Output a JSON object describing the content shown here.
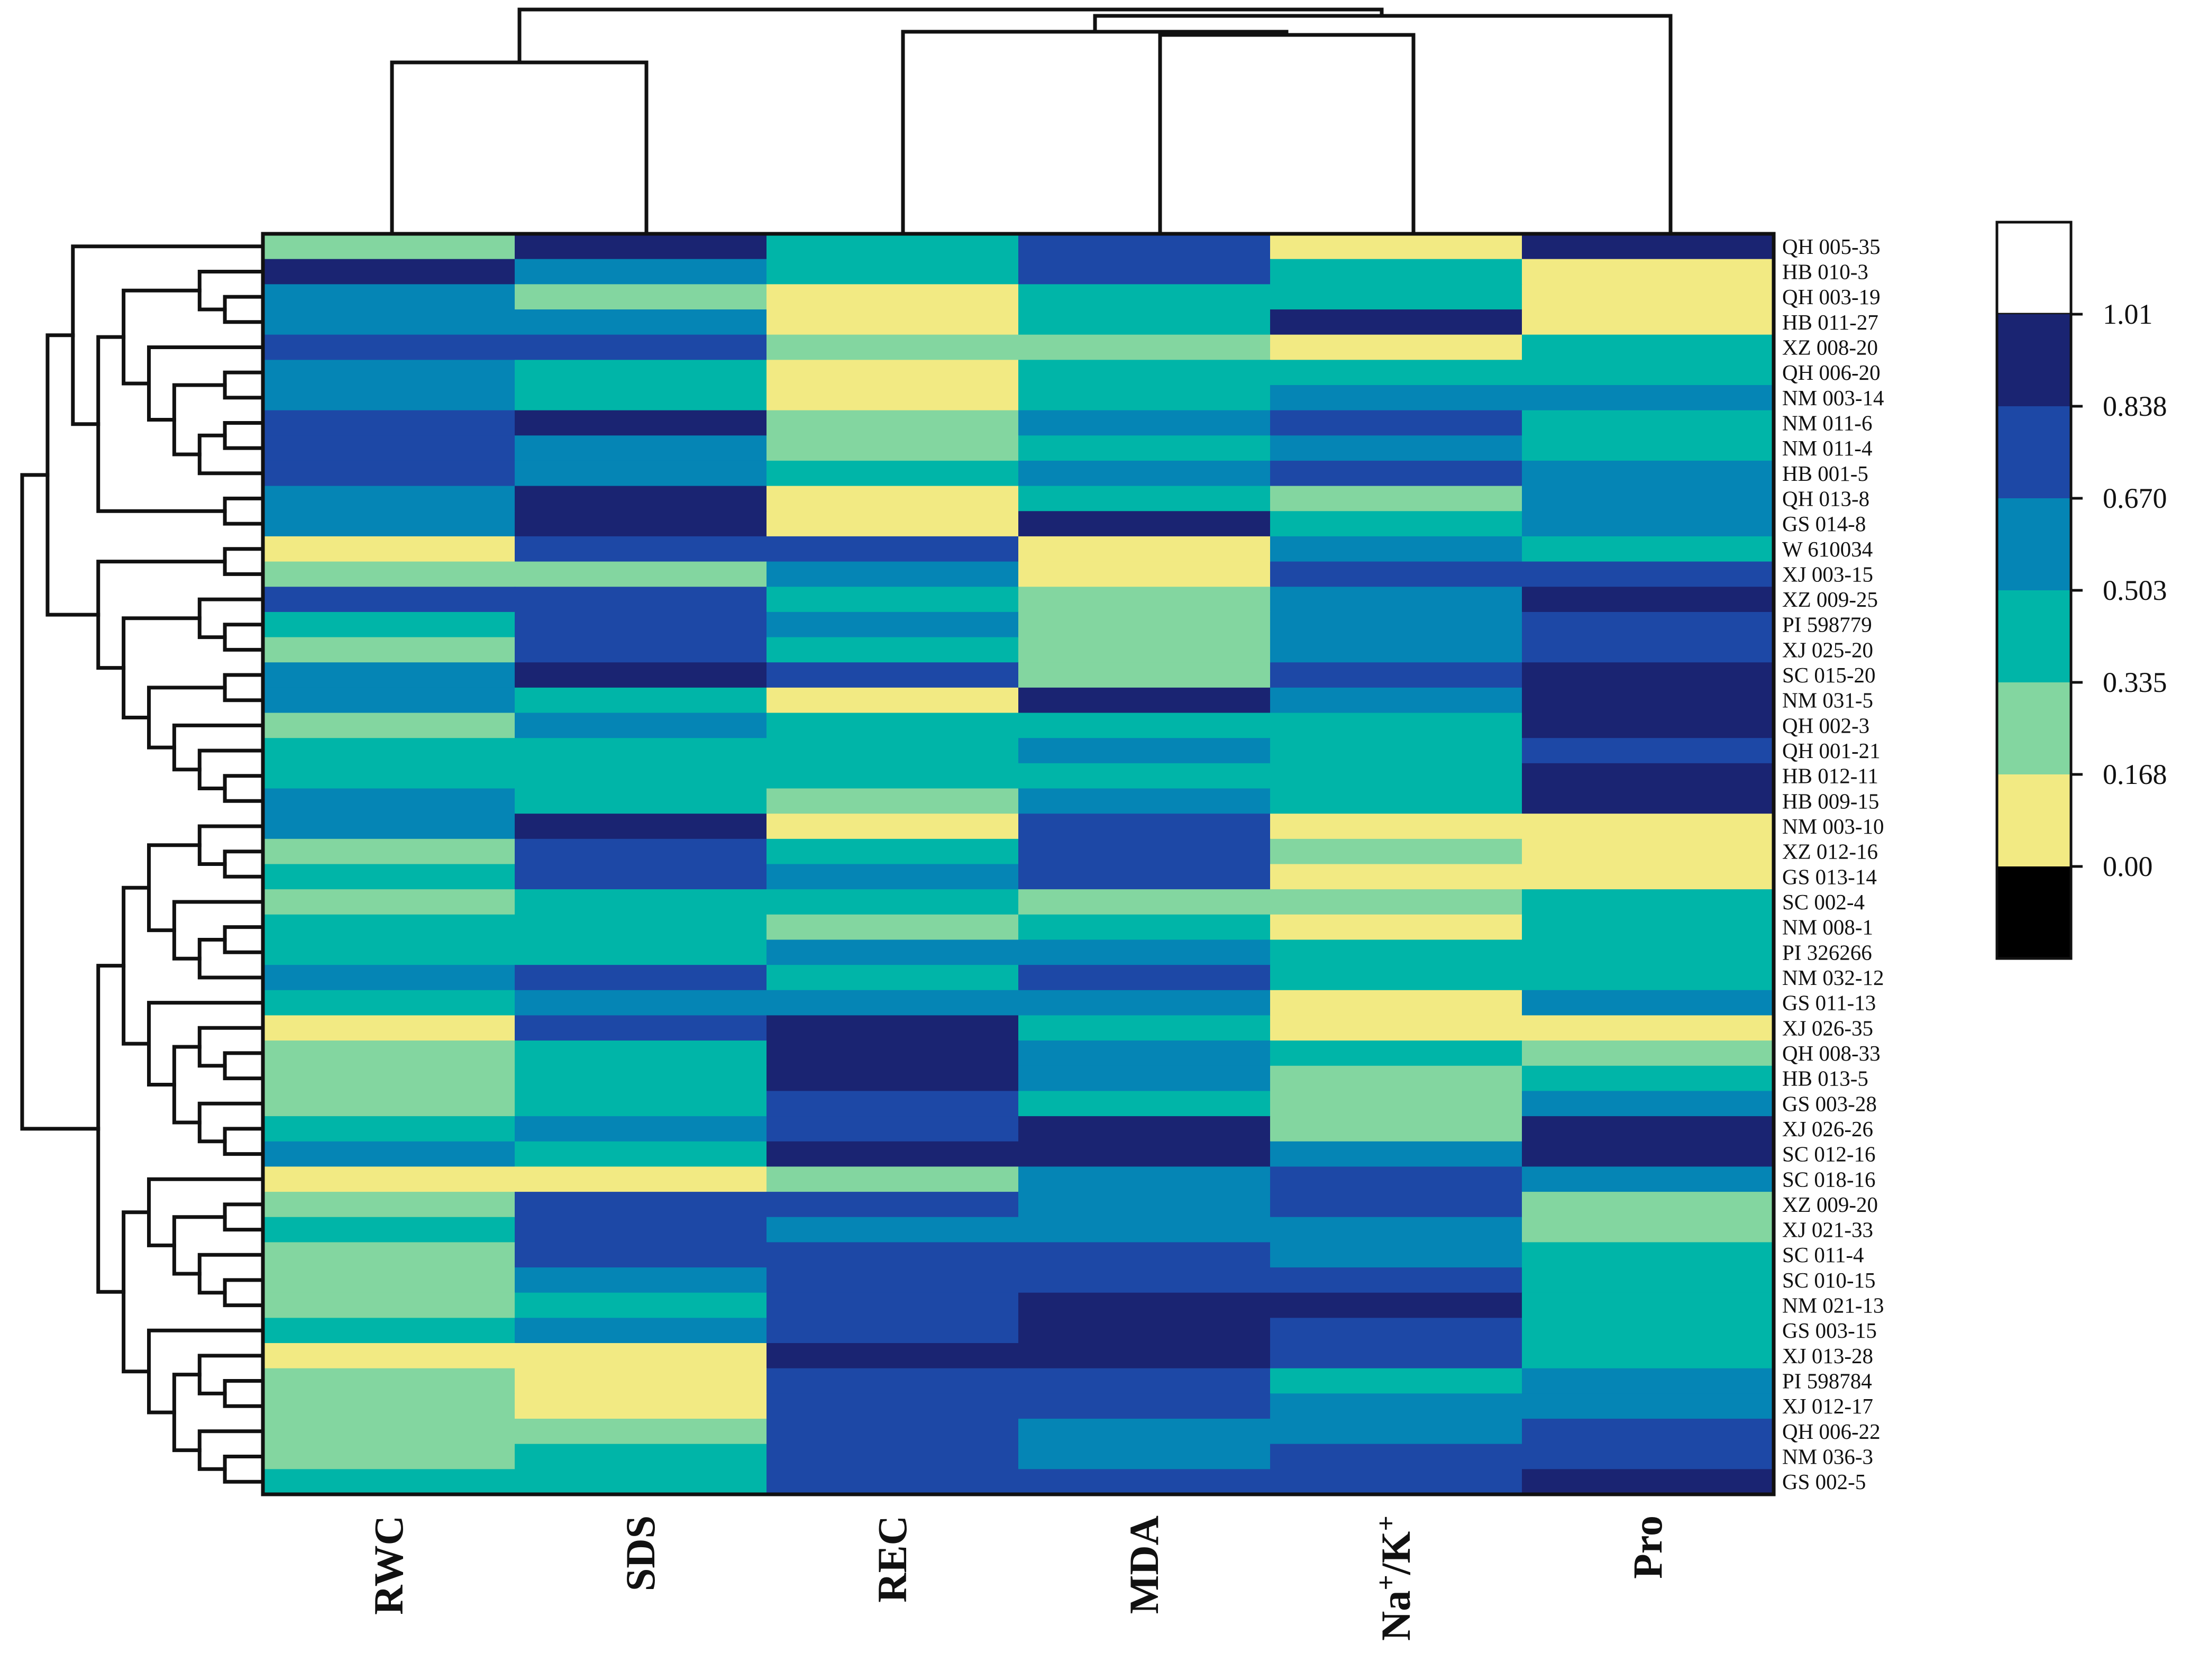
{
  "chart_data": {
    "type": "heatmap",
    "title": "",
    "columns": [
      "RWC",
      "SDS",
      "REC",
      "MDA",
      "Na+/K+",
      "Pro"
    ],
    "rows": [
      "QH 005-35",
      "HB 010-3",
      "QH 003-19",
      "HB 011-27",
      "XZ 008-20",
      "QH 006-20",
      "NM 003-14",
      "NM 011-6",
      "NM 011-4",
      "HB 001-5",
      "QH 013-8",
      "GS 014-8",
      "W 610034",
      "XJ 003-15",
      "XZ 009-25",
      "PI 598779",
      "XJ 025-20",
      "SC 015-20",
      "NM 031-5",
      "QH 002-3",
      "QH 001-21",
      "HB 012-11",
      "HB 009-15",
      "NM 003-10",
      "XZ 012-16",
      "GS 013-14",
      "SC 002-4",
      "NM 008-1",
      "PI 326266",
      "NM 032-12",
      "GS 011-13",
      "XJ 026-35",
      "QH 008-33",
      "HB 013-5",
      "GS 003-28",
      "XJ 026-26",
      "SC 012-16",
      "SC 018-16",
      "XZ 009-20",
      "XJ 021-33",
      "SC 011-4",
      "SC 010-15",
      "NM 021-13",
      "GS 003-15",
      "XJ 013-28",
      "PI 598784",
      "XJ 012-17",
      "QH 006-22",
      "NM 036-3",
      "GS 002-5"
    ],
    "values": [
      [
        0.25,
        0.92,
        0.42,
        0.75,
        0.08,
        0.92
      ],
      [
        0.92,
        0.58,
        0.42,
        0.75,
        0.42,
        0.08
      ],
      [
        0.58,
        0.25,
        0.08,
        0.42,
        0.42,
        0.08
      ],
      [
        0.58,
        0.58,
        0.08,
        0.42,
        0.92,
        0.08
      ],
      [
        0.75,
        0.75,
        0.25,
        0.25,
        0.08,
        0.42
      ],
      [
        0.58,
        0.42,
        0.08,
        0.42,
        0.42,
        0.42
      ],
      [
        0.58,
        0.42,
        0.08,
        0.42,
        0.58,
        0.58
      ],
      [
        0.75,
        0.92,
        0.25,
        0.58,
        0.75,
        0.42
      ],
      [
        0.75,
        0.58,
        0.25,
        0.42,
        0.58,
        0.42
      ],
      [
        0.75,
        0.58,
        0.42,
        0.58,
        0.75,
        0.58
      ],
      [
        0.58,
        0.92,
        0.08,
        0.42,
        0.25,
        0.58
      ],
      [
        0.58,
        0.92,
        0.08,
        0.92,
        0.42,
        0.58
      ],
      [
        0.08,
        0.75,
        0.75,
        0.08,
        0.58,
        0.42
      ],
      [
        0.25,
        0.25,
        0.58,
        0.08,
        0.75,
        0.75
      ],
      [
        0.75,
        0.75,
        0.42,
        0.25,
        0.58,
        0.92
      ],
      [
        0.42,
        0.75,
        0.58,
        0.25,
        0.58,
        0.75
      ],
      [
        0.25,
        0.75,
        0.42,
        0.25,
        0.58,
        0.75
      ],
      [
        0.58,
        0.92,
        0.75,
        0.25,
        0.75,
        0.92
      ],
      [
        0.58,
        0.42,
        0.08,
        0.92,
        0.58,
        0.92
      ],
      [
        0.25,
        0.58,
        0.42,
        0.42,
        0.42,
        0.92
      ],
      [
        0.42,
        0.42,
        0.42,
        0.58,
        0.42,
        0.75
      ],
      [
        0.42,
        0.42,
        0.42,
        0.42,
        0.42,
        0.92
      ],
      [
        0.58,
        0.42,
        0.25,
        0.58,
        0.42,
        0.92
      ],
      [
        0.58,
        0.92,
        0.08,
        0.75,
        0.08,
        0.08
      ],
      [
        0.25,
        0.75,
        0.42,
        0.75,
        0.25,
        0.08
      ],
      [
        0.42,
        0.75,
        0.58,
        0.75,
        0.08,
        0.08
      ],
      [
        0.25,
        0.42,
        0.42,
        0.25,
        0.25,
        0.42
      ],
      [
        0.42,
        0.42,
        0.25,
        0.42,
        0.08,
        0.42
      ],
      [
        0.42,
        0.42,
        0.58,
        0.58,
        0.42,
        0.42
      ],
      [
        0.58,
        0.75,
        0.42,
        0.75,
        0.42,
        0.42
      ],
      [
        0.42,
        0.58,
        0.58,
        0.58,
        0.08,
        0.58
      ],
      [
        0.08,
        0.75,
        0.92,
        0.42,
        0.08,
        0.08
      ],
      [
        0.25,
        0.42,
        0.92,
        0.58,
        0.42,
        0.25
      ],
      [
        0.25,
        0.42,
        0.92,
        0.58,
        0.25,
        0.42
      ],
      [
        0.25,
        0.42,
        0.75,
        0.42,
        0.25,
        0.58
      ],
      [
        0.42,
        0.58,
        0.75,
        0.92,
        0.25,
        0.92
      ],
      [
        0.58,
        0.42,
        0.92,
        0.92,
        0.58,
        0.92
      ],
      [
        0.08,
        0.08,
        0.25,
        0.58,
        0.75,
        0.58
      ],
      [
        0.25,
        0.75,
        0.75,
        0.58,
        0.75,
        0.25
      ],
      [
        0.42,
        0.75,
        0.58,
        0.58,
        0.58,
        0.25
      ],
      [
        0.25,
        0.75,
        0.75,
        0.75,
        0.58,
        0.42
      ],
      [
        0.25,
        0.58,
        0.75,
        0.75,
        0.75,
        0.42
      ],
      [
        0.25,
        0.42,
        0.75,
        0.92,
        0.92,
        0.42
      ],
      [
        0.42,
        0.58,
        0.75,
        0.92,
        0.75,
        0.42
      ],
      [
        0.08,
        0.08,
        0.92,
        0.92,
        0.75,
        0.42
      ],
      [
        0.25,
        0.08,
        0.75,
        0.75,
        0.42,
        0.58
      ],
      [
        0.25,
        0.08,
        0.75,
        0.75,
        0.58,
        0.58
      ],
      [
        0.25,
        0.25,
        0.75,
        0.58,
        0.58,
        0.75
      ],
      [
        0.25,
        0.42,
        0.75,
        0.58,
        0.75,
        0.75
      ],
      [
        0.42,
        0.42,
        0.75,
        0.75,
        0.75,
        0.92
      ]
    ],
    "column_dendrogram": "((RWC,SDS),((REC,(MDA,Na+/K+)),Pro))",
    "row_dendrogram": "left-side hierarchical clustering of the 50 accessions",
    "colorbar": {
      "ticks": [
        "1.01",
        "0.838",
        "0.670",
        "0.503",
        "0.335",
        "0.168",
        "0.00"
      ],
      "range": [
        0.0,
        1.01
      ],
      "bins": [
        {
          "from": 0.0,
          "to": 0.168,
          "color": "#f2ea83"
        },
        {
          "from": 0.168,
          "to": 0.335,
          "color": "#83d6a0"
        },
        {
          "from": 0.335,
          "to": 0.503,
          "color": "#00b5a8"
        },
        {
          "from": 0.503,
          "to": 0.67,
          "color": "#0585b5"
        },
        {
          "from": 0.67,
          "to": 0.838,
          "color": "#1d48a6"
        },
        {
          "from": 0.838,
          "to": 1.01,
          "color": "#1a2472"
        }
      ],
      "above_color": "#ffffff",
      "below_color": "#000000"
    }
  }
}
